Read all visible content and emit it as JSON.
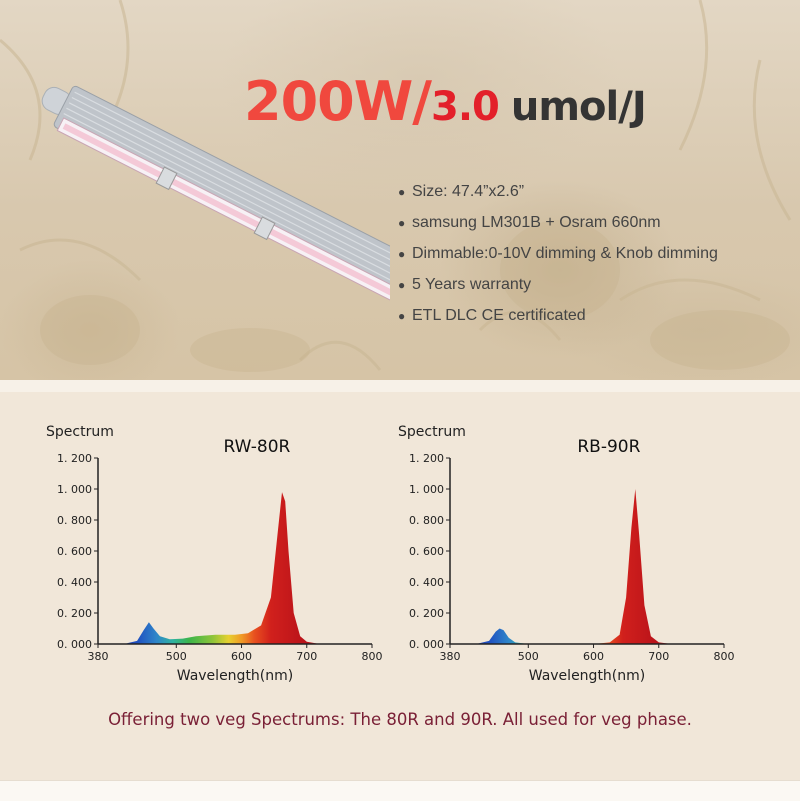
{
  "headline": {
    "power": "200W/",
    "efficiency": "3.0",
    "unit": "umol/J"
  },
  "features": [
    "Size: 47.4”x2.6”",
    "samsung LM301B  + Osram 660nm",
    "Dimmable:0-10V dimming & Knob dimming",
    "5 Years warranty",
    "ETL DLC CE certificated"
  ],
  "colors": {
    "power": "#f0483e",
    "efficiency": "#e3202a",
    "unit": "#343434",
    "caption": "#7a2036",
    "red_peak": "#c8191e",
    "blue_peak": "#1f5fb6"
  },
  "caption": "Offering two veg Spectrums: The 80R and 90R. All used for veg phase.",
  "chart_data": [
    {
      "type": "area",
      "title": "RW-80R",
      "ylabel": "Spectrum",
      "xlabel": "Wavelength(nm)",
      "xlim": [
        380,
        800
      ],
      "ylim": [
        0,
        1.2
      ],
      "xticks": [
        380,
        500,
        600,
        700,
        800
      ],
      "yticks": [
        "0. 000",
        "0. 200",
        "0. 400",
        "0. 600",
        "0. 800",
        "1. 000",
        "1. 200"
      ],
      "x": [
        380,
        420,
        440,
        450,
        458,
        465,
        475,
        490,
        510,
        530,
        560,
        590,
        610,
        630,
        645,
        655,
        662,
        667,
        672,
        680,
        690,
        700,
        720,
        800
      ],
      "values": [
        0,
        0,
        0.02,
        0.09,
        0.14,
        0.1,
        0.05,
        0.03,
        0.035,
        0.05,
        0.06,
        0.06,
        0.07,
        0.12,
        0.3,
        0.7,
        0.98,
        0.92,
        0.6,
        0.2,
        0.05,
        0.015,
        0,
        0
      ]
    },
    {
      "type": "area",
      "title": "RB-90R",
      "ylabel": "Spectrum",
      "xlabel": "Wavelength(nm)",
      "xlim": [
        380,
        800
      ],
      "ylim": [
        0,
        1.2
      ],
      "xticks": [
        380,
        500,
        600,
        700,
        800
      ],
      "yticks": [
        "0. 000",
        "0. 200",
        "0. 400",
        "0. 600",
        "0. 800",
        "1. 000",
        "1. 200"
      ],
      "x": [
        380,
        420,
        440,
        450,
        456,
        462,
        470,
        480,
        500,
        600,
        625,
        640,
        650,
        658,
        664,
        670,
        678,
        688,
        700,
        720,
        800
      ],
      "values": [
        0,
        0,
        0.02,
        0.08,
        0.1,
        0.09,
        0.04,
        0.01,
        0,
        0,
        0.01,
        0.06,
        0.3,
        0.75,
        1.0,
        0.7,
        0.25,
        0.05,
        0.01,
        0,
        0
      ]
    }
  ]
}
